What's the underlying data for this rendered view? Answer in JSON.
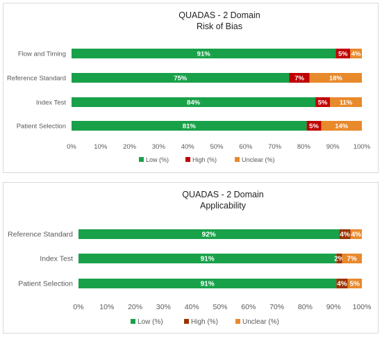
{
  "chart_data": [
    {
      "type": "bar",
      "orientation": "horizontal",
      "stacked": true,
      "title": "QUADAS - 2 Domain",
      "subtitle": "Risk of Bias",
      "categories": [
        "Flow and Timing",
        "Reference Standard",
        "Index Test",
        "Patient Selection"
      ],
      "series": [
        {
          "name": "Low (%)",
          "values": [
            91,
            75,
            84,
            81
          ],
          "labels": [
            "91%",
            "75%",
            "84%",
            "81%"
          ]
        },
        {
          "name": "High (%)",
          "values": [
            5,
            7,
            5,
            5
          ],
          "labels": [
            "5%",
            "7%",
            "5%",
            "5%"
          ]
        },
        {
          "name": "Unclear (%)",
          "values": [
            4,
            18,
            11,
            14
          ],
          "labels": [
            "4%",
            "18%",
            "11%",
            "14%"
          ]
        }
      ],
      "xlim": [
        0,
        100
      ],
      "ticks": [
        "0%",
        "10%",
        "20%",
        "30%",
        "40%",
        "50%",
        "60%",
        "70%",
        "80%",
        "90%",
        "100%"
      ],
      "legend_position": "bottom",
      "grid": false
    },
    {
      "type": "bar",
      "orientation": "horizontal",
      "stacked": true,
      "title": "QUADAS - 2 Domain",
      "subtitle": "Applicability",
      "categories": [
        "Reference Standard",
        "Index Test",
        "Patient Selection"
      ],
      "series": [
        {
          "name": "Low (%)",
          "values": [
            92,
            91,
            91
          ],
          "labels": [
            "92%",
            "91%",
            "91%"
          ]
        },
        {
          "name": "High (%)",
          "values": [
            4,
            2,
            4
          ],
          "labels": [
            "4%",
            "2%",
            "4%"
          ]
        },
        {
          "name": "Unclear (%)",
          "values": [
            4,
            7,
            5
          ],
          "labels": [
            "4%",
            "7%",
            "5%"
          ]
        }
      ],
      "xlim": [
        0,
        100
      ],
      "ticks": [
        "0%",
        "10%",
        "20%",
        "30%",
        "40%",
        "50%",
        "60%",
        "70%",
        "80%",
        "90%",
        "100%"
      ],
      "legend_position": "bottom",
      "grid": false
    }
  ],
  "colors": {
    "panel_0": {
      "low": "#19a14a",
      "high": "#c00000",
      "unclear": "#e8892b"
    },
    "panel_1": {
      "low": "#19a14a",
      "high": "#993300",
      "unclear": "#e8892b"
    }
  }
}
